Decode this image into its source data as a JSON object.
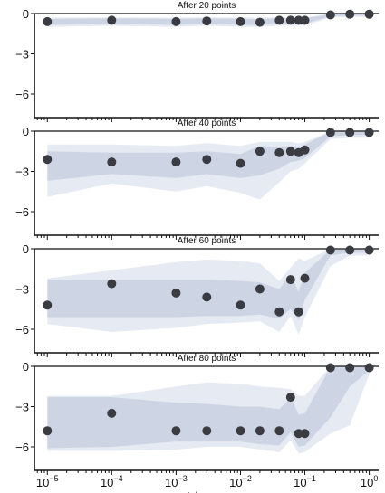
{
  "chart_data": {
    "type": "line",
    "xlabel": "tolerance",
    "x_scale": "log",
    "xlim": [
      6.3e-06,
      1.4
    ],
    "ylim": [
      -7,
      0
    ],
    "yticks": [
      0,
      -3,
      -6
    ],
    "ytick_labels": [
      "0",
      "−3",
      "−6"
    ],
    "xtick_labels": [
      {
        "base": "10",
        "exp": "−5",
        "value": 1e-05
      },
      {
        "base": "10",
        "exp": "−4",
        "value": 0.0001
      },
      {
        "base": "10",
        "exp": "−3",
        "value": 0.001
      },
      {
        "base": "10",
        "exp": "−2",
        "value": 0.01
      },
      {
        "base": "10",
        "exp": "−1",
        "value": 0.1
      },
      {
        "base": "10",
        "exp": "0",
        "value": 1
      }
    ],
    "x": [
      1e-05,
      0.0001,
      0.001,
      0.003,
      0.01,
      0.02,
      0.04,
      0.06,
      0.08,
      0.1,
      0.25,
      0.5,
      1
    ],
    "colors": {
      "band": "#b8c2da",
      "point": "#3a3c42"
    },
    "panels": [
      {
        "title": "After 20 points",
        "median": [
          -0.6,
          -0.5,
          -0.6,
          -0.55,
          -0.6,
          -0.65,
          -0.5,
          -0.5,
          -0.5,
          -0.5,
          -0.1,
          -0.05,
          -0.05
        ],
        "bands": [
          {
            "opacity": 0.35,
            "lower": [
              -1.0,
              -0.9,
              -1.0,
              -0.9,
              -1.0,
              -1.0,
              -0.9,
              -0.9,
              -0.9,
              -0.9,
              -0.3,
              -0.25,
              -0.25
            ],
            "upper": [
              -0.3,
              -0.3,
              -0.3,
              -0.3,
              -0.3,
              -0.3,
              -0.3,
              -0.3,
              -0.3,
              -0.3,
              0,
              0,
              0
            ]
          },
          {
            "opacity": 0.55,
            "lower": [
              -0.85,
              -0.75,
              -0.85,
              -0.75,
              -0.85,
              -0.85,
              -0.75,
              -0.75,
              -0.75,
              -0.75,
              -0.2,
              -0.15,
              -0.15
            ],
            "upper": [
              -0.4,
              -0.35,
              -0.4,
              -0.35,
              -0.4,
              -0.4,
              -0.35,
              -0.35,
              -0.35,
              -0.35,
              -0.05,
              -0.02,
              -0.02
            ]
          }
        ]
      },
      {
        "title": "After 40 points",
        "median": [
          -2.1,
          -2.3,
          -2.3,
          -2.1,
          -2.4,
          -1.5,
          -1.6,
          -1.5,
          -1.6,
          -1.4,
          -0.1,
          -0.1,
          -0.1
        ],
        "bands": [
          {
            "opacity": 0.35,
            "lower": [
              -4.9,
              -3.9,
              -4.5,
              -4.1,
              -4.6,
              -5.1,
              -3.8,
              -3.0,
              -2.8,
              -2.4,
              -0.6,
              -0.5,
              -0.5
            ],
            "upper": [
              -1.0,
              -1.0,
              -1.1,
              -0.9,
              -1.1,
              -0.8,
              -0.8,
              -0.8,
              -0.9,
              -0.8,
              0,
              0,
              0
            ]
          },
          {
            "opacity": 0.55,
            "lower": [
              -3.7,
              -3.2,
              -3.5,
              -3.2,
              -3.5,
              -3.3,
              -2.8,
              -2.3,
              -2.2,
              -2.0,
              -0.4,
              -0.3,
              -0.3
            ],
            "upper": [
              -1.5,
              -1.6,
              -1.6,
              -1.5,
              -1.7,
              -1.1,
              -1.2,
              -1.1,
              -1.2,
              -1.0,
              -0.05,
              -0.05,
              -0.05
            ]
          }
        ]
      },
      {
        "title": "After 60 points",
        "median": [
          -4.2,
          -2.6,
          -3.3,
          -3.6,
          -4.2,
          -3.0,
          -4.7,
          -2.3,
          -4.7,
          -2.2,
          -0.1,
          -0.1,
          -0.1
        ],
        "bands": [
          {
            "opacity": 0.35,
            "lower": [
              -5.6,
              -6.2,
              -5.9,
              -5.6,
              -5.5,
              -5.4,
              -6.2,
              -5.0,
              -6.4,
              -5.1,
              -1.3,
              -0.5,
              -0.5
            ],
            "upper": [
              -2.2,
              -1.6,
              -1.0,
              -0.8,
              -0.9,
              -1.1,
              -2.4,
              -1.4,
              -0.7,
              -0.9,
              0,
              0,
              0
            ]
          },
          {
            "opacity": 0.55,
            "lower": [
              -5.1,
              -5.1,
              -5.1,
              -5.0,
              -5.0,
              -4.9,
              -5.2,
              -4.5,
              -5.3,
              -3.8,
              -0.5,
              -0.3,
              -0.3
            ],
            "upper": [
              -2.3,
              -2.3,
              -2.3,
              -2.3,
              -2.4,
              -2.5,
              -3.0,
              -1.9,
              -3.2,
              -1.8,
              -0.05,
              -0.05,
              -0.05
            ]
          }
        ]
      },
      {
        "title": "After 80 points",
        "median": [
          -4.8,
          -3.5,
          -4.8,
          -4.8,
          -4.8,
          -4.8,
          -4.8,
          -2.3,
          -5.0,
          -5.0,
          -0.1,
          -0.1,
          -0.1
        ],
        "bands": [
          {
            "opacity": 0.35,
            "lower": [
              -6.3,
              -6.3,
              -6.2,
              -6.0,
              -6.0,
              -6.2,
              -6.4,
              -5.5,
              -6.5,
              -6.4,
              -5.0,
              -4.4,
              -0.6
            ],
            "upper": [
              -2.2,
              -2.2,
              -1.5,
              -1.2,
              -1.3,
              -1.5,
              -1.6,
              -1.7,
              -2.2,
              -2.2,
              0,
              0,
              0
            ]
          },
          {
            "opacity": 0.55,
            "lower": [
              -6.1,
              -6.0,
              -5.6,
              -5.6,
              -5.6,
              -5.8,
              -5.9,
              -4.9,
              -6.0,
              -5.9,
              -3.8,
              -1.5,
              -0.3
            ],
            "upper": [
              -2.3,
              -2.3,
              -2.7,
              -2.8,
              -3.0,
              -3.0,
              -3.2,
              -2.3,
              -3.6,
              -3.5,
              -0.05,
              -0.05,
              -0.05
            ]
          }
        ]
      }
    ]
  }
}
